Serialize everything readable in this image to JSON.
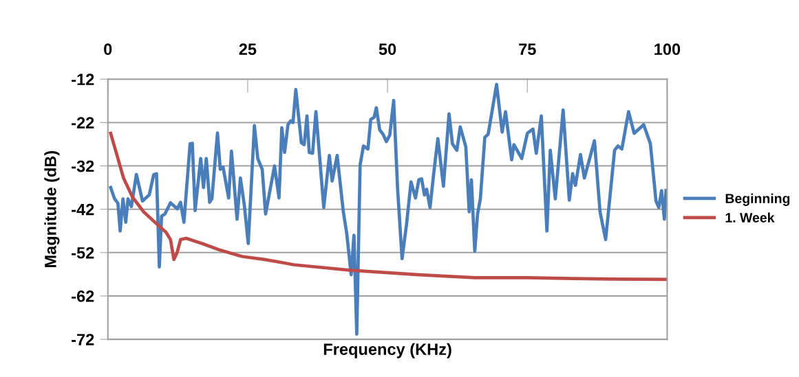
{
  "chart_data": {
    "type": "line",
    "xlabel": "Frequency (KHz)",
    "ylabel": "Magnitude (dB)",
    "xlim": [
      0,
      100
    ],
    "xticks": [
      0,
      25,
      50,
      75,
      100
    ],
    "ylim": [
      -72,
      -12
    ],
    "yticks": [
      -12,
      -22,
      -32,
      -42,
      -52,
      -62,
      -72
    ],
    "grid": "y",
    "legend": "right",
    "marker": "none",
    "line_style": "solid",
    "series": [
      {
        "name": "Beginning",
        "color": "#4a7ebb",
        "x": [
          0.5,
          1.2,
          1.8,
          2.2,
          2.7,
          3.2,
          3.6,
          4.2,
          5.1,
          6.2,
          7.4,
          8.2,
          8.7,
          9.2,
          9.6,
          10.2,
          11.2,
          12.4,
          13.0,
          13.6,
          14.7,
          15.1,
          15.6,
          16.6,
          17.1,
          17.6,
          18.2,
          18.6,
          19.6,
          20.1,
          20.6,
          21.6,
          22.1,
          23.1,
          23.7,
          24.4,
          25.1,
          26.2,
          26.8,
          27.6,
          28.2,
          29.8,
          30.6,
          31.1,
          31.6,
          32.2,
          32.7,
          33.1,
          33.6,
          34.6,
          35.1,
          35.6,
          36.0,
          36.6,
          37.2,
          38.6,
          39.6,
          40.1,
          41.0,
          42.1,
          42.7,
          43.5,
          44.0,
          44.5,
          45.1,
          45.7,
          46.5,
          47.0,
          47.6,
          48.0,
          48.6,
          49.2,
          49.8,
          50.4,
          51.1,
          51.8,
          52.6,
          53.4,
          54.2,
          55.0,
          55.6,
          56.1,
          56.6,
          57.0,
          57.6,
          58.3,
          59.0,
          60.0,
          61.0,
          61.6,
          62.4,
          63.0,
          64.0,
          64.6,
          65.0,
          65.6,
          66.1,
          66.6,
          67.4,
          68.0,
          69.5,
          70.5,
          71.1,
          72.2,
          72.6,
          74.0,
          75.0,
          76.0,
          76.6,
          77.5,
          78.5,
          79.1,
          80.0,
          81.4,
          82.5,
          83.1,
          83.6,
          84.5,
          85.2,
          87.0,
          88.0,
          89.0,
          90.6,
          91.2,
          91.9,
          93.1,
          94.1,
          95.8,
          97.0,
          98.0,
          98.5,
          99.0,
          99.5,
          99.8
        ],
        "values": [
          -37.0,
          -39.6,
          -40.6,
          -47.0,
          -39.6,
          -45.0,
          -39.6,
          -41.4,
          -34.0,
          -40.1,
          -38.7,
          -34.0,
          -33.8,
          -55.3,
          -43.6,
          -43.1,
          -40.5,
          -41.9,
          -40.4,
          -45.0,
          -26.9,
          -26.8,
          -42.3,
          -30.3,
          -37.0,
          -30.3,
          -40.4,
          -39.6,
          -24.4,
          -32.8,
          -32.3,
          -39.4,
          -28.6,
          -44.3,
          -34.8,
          -41.1,
          -49.9,
          -22.7,
          -30.3,
          -32.8,
          -43.1,
          -32.0,
          -39.4,
          -23.2,
          -28.9,
          -22.5,
          -21.6,
          -22.0,
          -14.4,
          -26.7,
          -27.1,
          -20.5,
          -28.9,
          -29.1,
          -19.5,
          -41.6,
          -29.6,
          -35.5,
          -29.6,
          -42.6,
          -47.5,
          -57.1,
          -48.0,
          -70.8,
          -31.8,
          -27.4,
          -28.1,
          -21.3,
          -20.8,
          -18.6,
          -23.7,
          -24.7,
          -26.4,
          -24.9,
          -16.9,
          -37.2,
          -53.4,
          -45.5,
          -35.7,
          -39.4,
          -35.2,
          -35.0,
          -38.7,
          -37.4,
          -41.6,
          -33.3,
          -25.7,
          -36.7,
          -20.0,
          -26.9,
          -28.4,
          -23.0,
          -27.6,
          -42.6,
          -35.2,
          -51.7,
          -43.1,
          -39.6,
          -25.4,
          -24.7,
          -13.2,
          -24.2,
          -19.5,
          -30.6,
          -27.1,
          -30.3,
          -24.5,
          -23.5,
          -29.1,
          -20.5,
          -47.0,
          -28.4,
          -39.6,
          -19.1,
          -39.9,
          -33.8,
          -36.5,
          -29.4,
          -34.8,
          -26.2,
          -42.6,
          -49.0,
          -28.4,
          -27.4,
          -28.1,
          -19.5,
          -24.5,
          -22.5,
          -26.9,
          -40.1,
          -41.6,
          -37.7,
          -44.3,
          -37.7
        ]
      },
      {
        "name": "1. Week",
        "color": "#be4b48",
        "x": [
          0.5,
          1.6,
          2.8,
          4.4,
          6.4,
          8.4,
          10.4,
          11.2,
          11.8,
          12.4,
          13.0,
          14.0,
          16.8,
          20.0,
          24.0,
          28.0,
          31.6,
          33.2,
          43.6,
          55.6,
          65.6,
          75.0,
          83.2,
          90.0,
          100.0
        ],
        "values": [
          -24.5,
          -29.4,
          -34.8,
          -39.2,
          -42.6,
          -45.0,
          -47.3,
          -49.0,
          -53.6,
          -51.9,
          -49.0,
          -48.7,
          -49.9,
          -51.4,
          -52.9,
          -53.6,
          -54.4,
          -54.8,
          -56.1,
          -57.1,
          -57.8,
          -57.8,
          -58.0,
          -58.1,
          -58.2
        ]
      }
    ]
  }
}
